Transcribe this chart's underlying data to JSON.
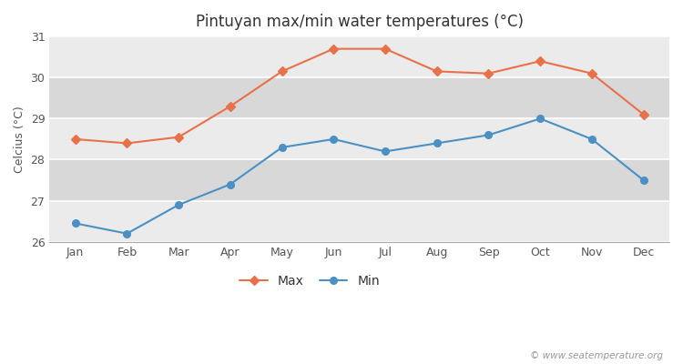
{
  "title": "Pintuyan max/min water temperatures (°C)",
  "ylabel": "Celcius (°C)",
  "months": [
    "Jan",
    "Feb",
    "Mar",
    "Apr",
    "May",
    "Jun",
    "Jul",
    "Aug",
    "Sep",
    "Oct",
    "Nov",
    "Dec"
  ],
  "max_temps": [
    28.5,
    28.4,
    28.55,
    29.3,
    30.15,
    30.7,
    30.7,
    30.15,
    30.1,
    30.4,
    30.1,
    29.1
  ],
  "min_temps": [
    26.45,
    26.2,
    26.9,
    27.4,
    28.3,
    28.5,
    28.2,
    28.4,
    28.6,
    29.0,
    28.5,
    27.5
  ],
  "max_color": "#e8714a",
  "min_color": "#4a90c4",
  "bg_color": "#ffffff",
  "band_colors": [
    "#ebebeb",
    "#d8d8d8",
    "#ebebeb",
    "#d8d8d8",
    "#ebebeb"
  ],
  "ylim_min": 26.0,
  "ylim_max": 31.0,
  "yticks": [
    26,
    27,
    28,
    29,
    30,
    31
  ],
  "legend_labels": [
    "Max",
    "Min"
  ],
  "watermark": "© www.seatemperature.org"
}
